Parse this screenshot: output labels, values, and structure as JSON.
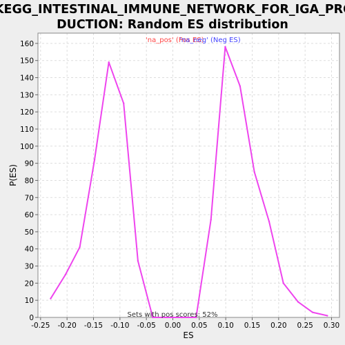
{
  "chart_data": {
    "type": "line",
    "title_lines": [
      "KEGG_INTESTINAL_IMMUNE_NETWORK_FOR_IGA_PRO",
      "DUCTION: Random ES distribution"
    ],
    "xlabel": "ES",
    "ylabel": "P(ES)",
    "xlim": [
      -0.255,
      0.315
    ],
    "ylim": [
      0,
      166
    ],
    "x_ticks": [
      -0.25,
      -0.2,
      -0.15,
      -0.1,
      -0.05,
      0.0,
      0.05,
      0.1,
      0.15,
      0.2,
      0.25,
      0.3
    ],
    "x_tick_labels": [
      "-0.25",
      "-0.20",
      "-0.15",
      "-0.10",
      "-0.05",
      "0.00",
      "0.05",
      "0.10",
      "0.15",
      "0.20",
      "0.25",
      "0.30"
    ],
    "y_ticks": [
      0,
      10,
      20,
      30,
      40,
      50,
      60,
      70,
      80,
      90,
      100,
      110,
      120,
      130,
      140,
      150,
      160
    ],
    "grid": true,
    "legend": [
      {
        "label": "'na_pos' (Pos ES)",
        "color": "#ff4444"
      },
      {
        "label": "'na_neg' (Neg ES)",
        "color": "#4444ff"
      }
    ],
    "legend_placement": "top-center",
    "line_color": "#ee44ee",
    "series": [
      {
        "x": [
          -0.231,
          -0.203,
          -0.176,
          -0.148,
          -0.121,
          -0.093,
          -0.066,
          -0.038,
          -0.011,
          0.017,
          0.044,
          0.072,
          0.099,
          0.127,
          0.154,
          0.182,
          0.209,
          0.237,
          0.264,
          0.292
        ],
        "values": [
          11,
          25,
          41,
          92,
          149,
          125,
          33,
          0,
          0,
          0,
          0,
          57,
          158,
          135,
          85,
          56,
          20,
          9,
          3,
          1
        ]
      }
    ],
    "annotation": "Sets with pos scores: 52%"
  }
}
